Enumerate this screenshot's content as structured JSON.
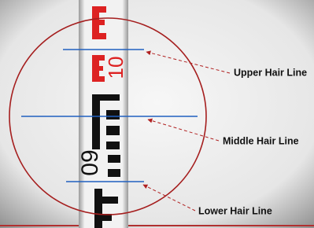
{
  "labels": {
    "upper": "Upper Hair Line",
    "middle": "Middle Hair Line",
    "lower": "Lower Hair Line"
  },
  "staff": {
    "upper_number": "10",
    "lower_number": "09"
  }
}
